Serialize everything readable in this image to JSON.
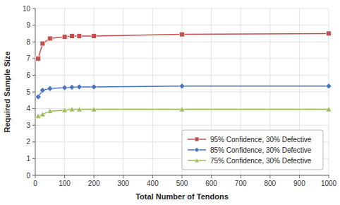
{
  "chart_data": {
    "type": "line",
    "xlabel": "Total Number of Tendons",
    "ylabel": "Required Sample Size",
    "x": [
      10,
      25,
      50,
      100,
      125,
      150,
      200,
      500,
      1000
    ],
    "series": [
      {
        "name": "95% Confidence, 30% Defective",
        "color": "#C0504D",
        "marker": "square",
        "values": [
          7.0,
          7.9,
          8.2,
          8.3,
          8.35,
          8.35,
          8.35,
          8.45,
          8.5
        ]
      },
      {
        "name": "85% Confidence, 30% Defective",
        "color": "#4472C4",
        "marker": "diamond",
        "values": [
          4.7,
          5.1,
          5.2,
          5.25,
          5.28,
          5.3,
          5.3,
          5.35,
          5.35
        ]
      },
      {
        "name": "75% Confidence, 30% Defective",
        "color": "#9BBB59",
        "marker": "triangle",
        "values": [
          3.55,
          3.65,
          3.85,
          3.9,
          3.95,
          3.95,
          3.95,
          3.95,
          3.95
        ]
      }
    ],
    "xlim": [
      0,
      1000
    ],
    "ylim": [
      0,
      10
    ],
    "xticks": [
      0,
      100,
      200,
      300,
      400,
      500,
      600,
      700,
      800,
      900,
      1000
    ],
    "yticks": [
      0,
      1,
      2,
      3,
      4,
      5,
      6,
      7,
      8,
      9,
      10
    ],
    "grid": true,
    "legend": "lower right"
  }
}
